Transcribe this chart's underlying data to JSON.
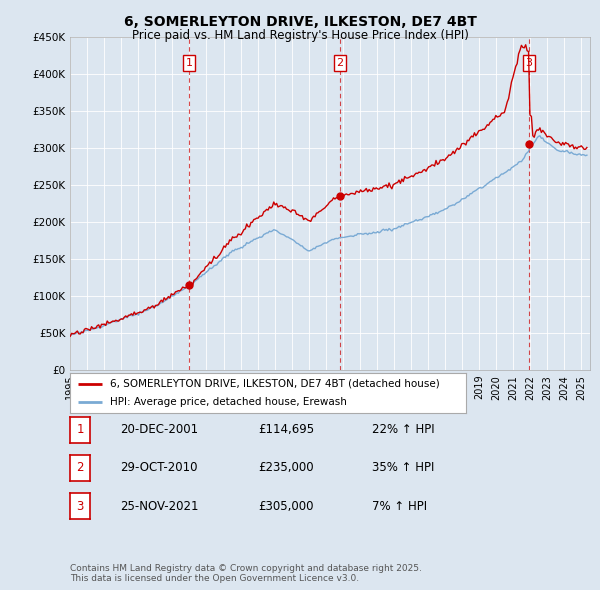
{
  "title": "6, SOMERLEYTON DRIVE, ILKESTON, DE7 4BT",
  "subtitle": "Price paid vs. HM Land Registry's House Price Index (HPI)",
  "ylim": [
    0,
    450000
  ],
  "yticks": [
    0,
    50000,
    100000,
    150000,
    200000,
    250000,
    300000,
    350000,
    400000,
    450000
  ],
  "ytick_labels": [
    "£0",
    "£50K",
    "£100K",
    "£150K",
    "£200K",
    "£250K",
    "£300K",
    "£350K",
    "£400K",
    "£450K"
  ],
  "xlim_start": 1995.0,
  "xlim_end": 2025.5,
  "sale_dates": [
    2001.97,
    2010.83,
    2021.92
  ],
  "sale_prices": [
    114695,
    235000,
    305000
  ],
  "sale_labels": [
    "1",
    "2",
    "3"
  ],
  "hpi_color": "#7aaad4",
  "sale_color": "#cc0000",
  "vline_color": "#cc0000",
  "background_color": "#dce6f0",
  "plot_bg_color": "#dce6f0",
  "legend_label_sale": "6, SOMERLEYTON DRIVE, ILKESTON, DE7 4BT (detached house)",
  "legend_label_hpi": "HPI: Average price, detached house, Erewash",
  "table_entries": [
    {
      "num": "1",
      "date": "20-DEC-2001",
      "price": "£114,695",
      "hpi": "22% ↑ HPI"
    },
    {
      "num": "2",
      "date": "29-OCT-2010",
      "price": "£235,000",
      "hpi": "35% ↑ HPI"
    },
    {
      "num": "3",
      "date": "25-NOV-2021",
      "price": "£305,000",
      "hpi": "7% ↑ HPI"
    }
  ],
  "footnote": "Contains HM Land Registry data © Crown copyright and database right 2025.\nThis data is licensed under the Open Government Licence v3.0."
}
